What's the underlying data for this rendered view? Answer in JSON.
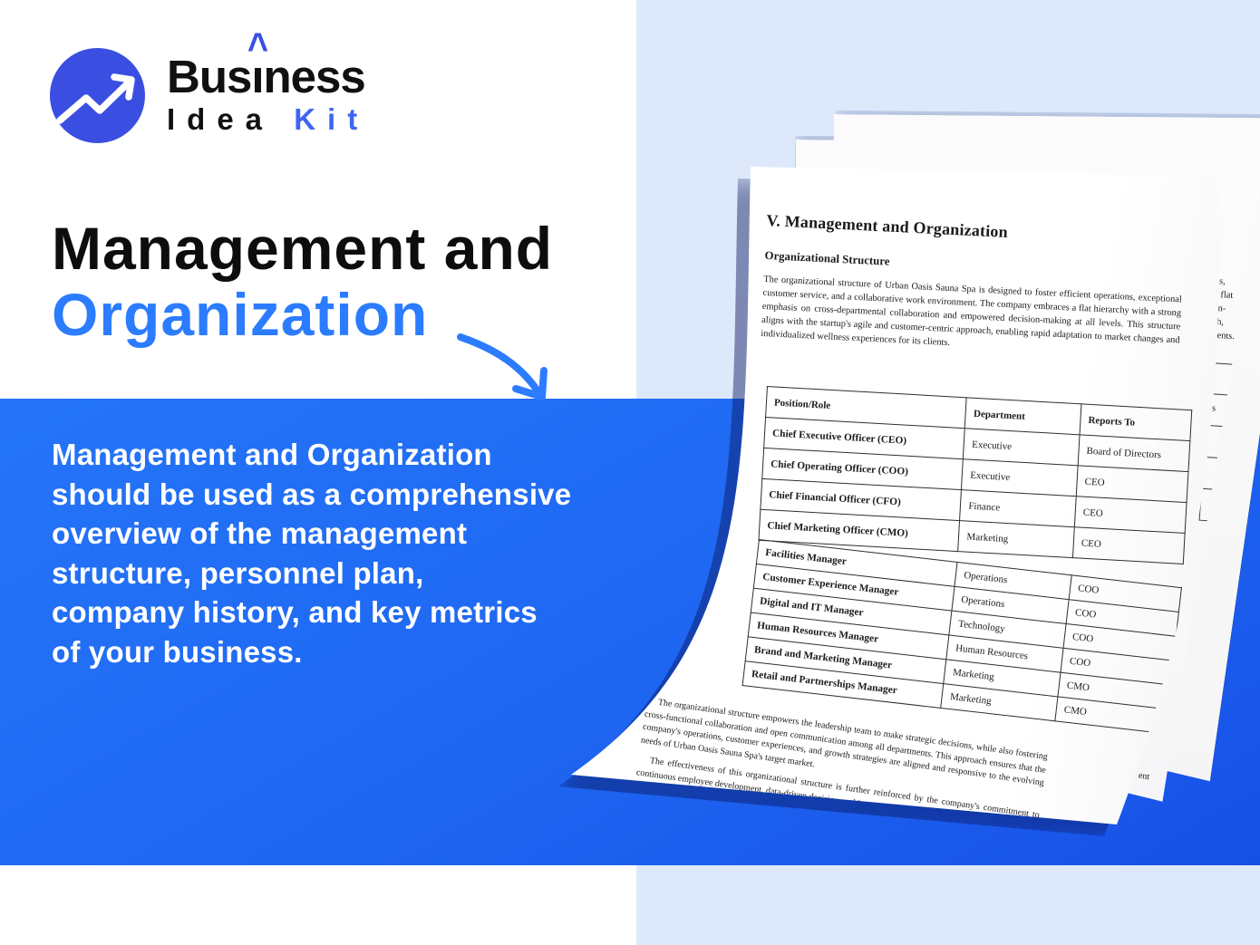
{
  "colors": {
    "accent_blue": "#2b7cfe",
    "box_blue_start": "#2575f8",
    "box_blue_end": "#1750e6",
    "panel_blue": "#dde9fb",
    "logo_blue": "#3a4fe2",
    "logo_kit_blue": "#3f66f2"
  },
  "logo": {
    "icon": "trending-up-arrow-in-circle",
    "brand_pre": "Bus",
    "brand_i": "ı",
    "brand_caret": "^",
    "brand_post": "ness",
    "brand_line2": "Idea",
    "brand_line2_accent": "Kit"
  },
  "hero": {
    "title_line1": "Management and",
    "title_line2": "Organization"
  },
  "info_box": {
    "lines": [
      "Management and Organization",
      "should be used as a comprehensive",
      "overview of the management",
      "structure, personnel plan,",
      "company history, and key metrics",
      "of your business."
    ]
  },
  "document": {
    "title": "V. Management and Organization",
    "section_heading": "Organizational Structure",
    "intro": "The organizational structure of Urban Oasis Sauna Spa is designed to foster efficient operations, exceptional customer service, and a collaborative work environment. The company embraces a flat hierarchy with a strong emphasis on cross-departmental collaboration and empowered decision-making at all levels. This structure aligns with the startup's agile and customer-centric approach, enabling rapid adaptation to market changes and individualized wellness experiences for its clients.",
    "table": {
      "headers": [
        "Position/Role",
        "Department",
        "Reports To"
      ],
      "rows": [
        [
          "Chief Executive Officer (CEO)",
          "Executive",
          "Board of Directors"
        ],
        [
          "Chief Operating Officer (COO)",
          "Executive",
          "CEO"
        ],
        [
          "Chief Financial Officer (CFO)",
          "Finance",
          "CEO"
        ],
        [
          "Chief Marketing Officer (CMO)",
          "Marketing",
          "CEO"
        ],
        [
          "Facilities Manager",
          "Operations",
          "COO"
        ],
        [
          "Customer Experience Manager",
          "Operations",
          "COO"
        ],
        [
          "Digital and IT Manager",
          "Technology",
          "COO"
        ],
        [
          "Human Resources Manager",
          "Human Resources",
          "COO"
        ],
        [
          "Brand and Marketing Manager",
          "Marketing",
          "CMO"
        ],
        [
          "Retail and Partnerships Manager",
          "Marketing",
          "CMO"
        ]
      ]
    },
    "para2": "The organizational structure empowers the leadership team to make strategic decisions, while also fostering cross-functional collaboration and open communication among all departments. This approach ensures that the company's operations, customer experiences, and growth strategies are aligned and responsive to the evolving needs of Urban Oasis Sauna Spa's target market.",
    "para3": "The effectiveness of this organizational structure is further reinforced by the company's commitment to continuous employee development, data-driven decision-making, and a strong emphasis on",
    "behind_page_fragments": {
      "intro_line_endings": [
        "ns,",
        "a flat",
        "on-",
        "ch,",
        "lients."
      ],
      "table_cell": "rs",
      "bottom_fragment": "ent"
    }
  }
}
